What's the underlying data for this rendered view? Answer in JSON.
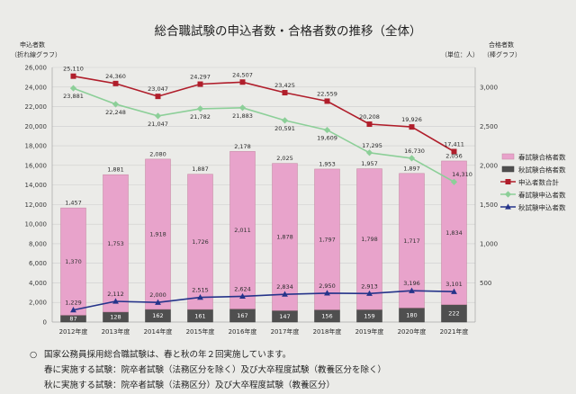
{
  "chart_data": {
    "type": "bar",
    "title": "総合職試験の申込者数・合格者数の推移（全体）",
    "ylabel": "申込者数",
    "ylabel_note": "（折れ線グラフ）",
    "y2label": "合格者数",
    "y2label_note": "（棒グラフ）",
    "unit": "（単位：人）",
    "ylim": [
      0,
      26000
    ],
    "y2lim": [
      0,
      3250
    ],
    "yticks": [
      "0",
      "2,000",
      "4,000",
      "6,000",
      "8,000",
      "10,000",
      "12,000",
      "14,000",
      "16,000",
      "18,000",
      "20,000",
      "22,000",
      "24,000",
      "26,000"
    ],
    "y2ticks": [
      "500",
      "1,000",
      "1,500",
      "2,000",
      "2,500",
      "3,000"
    ],
    "grid": true,
    "legend_position": "right",
    "categories": [
      "2012年度",
      "2013年度",
      "2014年度",
      "2015年度",
      "2016年度",
      "2017年度",
      "2018年度",
      "2019年度",
      "2020年度",
      "2021年度"
    ],
    "bar_series": [
      {
        "name": "春試験合格者数",
        "color": "#e8a3cb",
        "label_color": "#333333",
        "values": [
          1370,
          1753,
          1918,
          1726,
          2011,
          1878,
          1797,
          1798,
          1717,
          1834
        ],
        "labels": [
          "1,370",
          "1,753",
          "1,918",
          "1,726",
          "2,011",
          "1,878",
          "1,797",
          "1,798",
          "1,717",
          "1,834"
        ]
      },
      {
        "name": "秋試験合格者数",
        "color": "#4f4f4f",
        "label_color": "#ffffff",
        "values": [
          87,
          128,
          162,
          161,
          167,
          147,
          156,
          159,
          180,
          222
        ],
        "labels": [
          "87",
          "128",
          "162",
          "161",
          "167",
          "147",
          "156",
          "159",
          "180",
          "222"
        ]
      }
    ],
    "bar_totals": {
      "values": [
        1457,
        1881,
        2080,
        1887,
        2178,
        2025,
        1953,
        1957,
        1897,
        2056
      ],
      "labels": [
        "1,457",
        "1,881",
        "2,080",
        "1,887",
        "2,178",
        "2,025",
        "1,953",
        "1,957",
        "1,897",
        "2,056"
      ]
    },
    "line_series": [
      {
        "name": "申込者数合計",
        "color": "#b01e2b",
        "values": [
          25110,
          24360,
          23047,
          24297,
          24507,
          23425,
          22559,
          20208,
          19926,
          17411
        ],
        "labels": [
          "25,110",
          "24,360",
          "23,047",
          "24,297",
          "24,507",
          "23,425",
          "22,559",
          "20,208",
          "19,926",
          "17,411"
        ]
      },
      {
        "name": "春試験申込者数",
        "color": "#8ccf98",
        "values": [
          23881,
          22248,
          21047,
          21782,
          21883,
          20591,
          19609,
          17295,
          16730,
          14310
        ],
        "labels": [
          "23,881",
          "22,248",
          "21,047",
          "21,782",
          "21,883",
          "20,591",
          "19,609",
          "17,295",
          "16,730",
          "14,310"
        ]
      },
      {
        "name": "秋試験申込者数",
        "color": "#25348a",
        "values": [
          1229,
          2112,
          2000,
          2515,
          2624,
          2834,
          2950,
          2913,
          3196,
          3101
        ],
        "labels": [
          "1,229",
          "2,112",
          "2,000",
          "2,515",
          "2,624",
          "2,834",
          "2,950",
          "2,913",
          "3,196",
          "3,101"
        ]
      }
    ]
  },
  "notes": {
    "bullet": "○",
    "lines": [
      "国家公務員採用総合職試験は、春と秋の年２回実施しています。",
      "春に実施する試験：院卒者試験（法務区分を除く）及び大卒程度試験（教養区分を除く）",
      "秋に実施する試験：院卒者試験（法務区分）及び大卒程度試験（教養区分）"
    ]
  }
}
